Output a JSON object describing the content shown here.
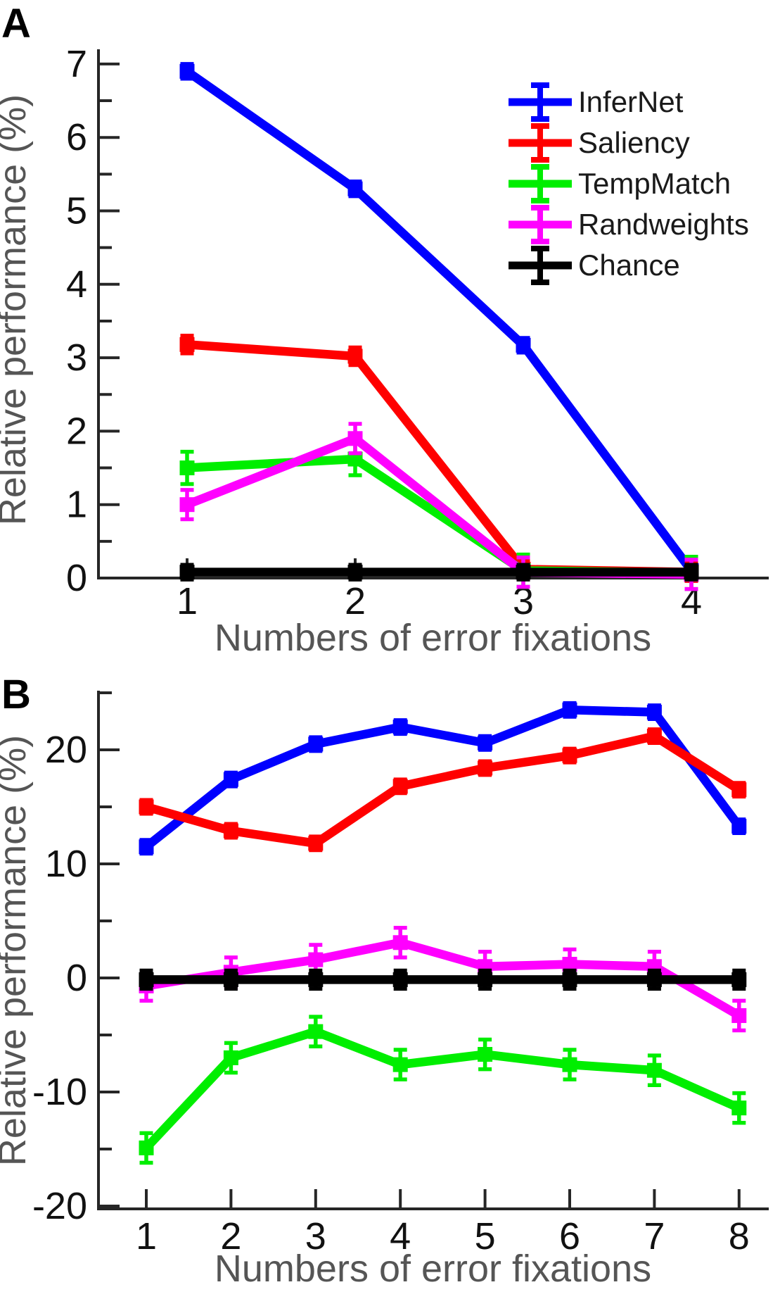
{
  "figure": {
    "panel_letters": [
      "A",
      "B"
    ],
    "colors": {
      "axis": "#262626",
      "tick_label": "#111111",
      "axis_label": "#555555",
      "infernet": "#0000ff",
      "saliency": "#ff0000",
      "tempmatch": "#00ee00",
      "randweights": "#ff00ff",
      "chance": "#000000"
    },
    "legend": {
      "position": "top-right-inside-panel-A",
      "items": [
        "InferNet",
        "Saliency",
        "TempMatch",
        "Randweights",
        "Chance"
      ]
    }
  },
  "chart_data": [
    {
      "type": "line",
      "panel": "A",
      "title": "",
      "xlabel": "Numbers of error fixations",
      "ylabel": "Relative performance (%)",
      "x": [
        1,
        2,
        3,
        4
      ],
      "xtick_labels": [
        "1",
        "2",
        "3",
        "4"
      ],
      "yticks_major": [
        0,
        1,
        2,
        3,
        4,
        5,
        6,
        7
      ],
      "ytick_labels": [
        "0",
        "1",
        "2",
        "3",
        "4",
        "5",
        "6",
        "7"
      ],
      "yticks_minor": [
        0.5,
        1.5,
        2.5,
        3.5,
        4.5,
        5.5,
        6.5
      ],
      "ylim": [
        0,
        7.2
      ],
      "grid": false,
      "legend_shown": true,
      "series": [
        {
          "name": "InferNet",
          "color": "#0000ff",
          "err": 0.1,
          "values": [
            6.9,
            5.3,
            3.17,
            0.1
          ]
        },
        {
          "name": "Saliency",
          "color": "#ff0000",
          "err": 0.12,
          "values": [
            3.18,
            3.02,
            0.12,
            0.08
          ]
        },
        {
          "name": "TempMatch",
          "color": "#00ee00",
          "err": 0.22,
          "values": [
            1.5,
            1.62,
            0.1,
            0.07
          ]
        },
        {
          "name": "Randweights",
          "color": "#ff00ff",
          "err": 0.2,
          "values": [
            1.0,
            1.9,
            0.08,
            0.05
          ]
        },
        {
          "name": "Chance",
          "color": "#000000",
          "err": 0.1,
          "values": [
            0.08,
            0.08,
            0.08,
            0.08
          ]
        }
      ]
    },
    {
      "type": "line",
      "panel": "B",
      "title": "",
      "xlabel": "Numbers of error fixations",
      "ylabel": "Relative performance (%)",
      "x": [
        1,
        2,
        3,
        4,
        5,
        6,
        7,
        8
      ],
      "xtick_labels": [
        "1",
        "2",
        "3",
        "4",
        "5",
        "6",
        "7",
        "8"
      ],
      "yticks_major": [
        -20,
        -10,
        0,
        10,
        20
      ],
      "ytick_labels": [
        "-20",
        "-10",
        "0",
        "10",
        "20"
      ],
      "yticks_minor": [
        25,
        15,
        5,
        -5,
        -15
      ],
      "ylim": [
        -20.5,
        25.2
      ],
      "grid": false,
      "legend_shown": false,
      "series": [
        {
          "name": "InferNet",
          "color": "#0000ff",
          "err": 0.6,
          "values": [
            11.5,
            17.4,
            20.5,
            22.0,
            20.6,
            23.5,
            23.3,
            13.3
          ]
        },
        {
          "name": "Saliency",
          "color": "#ff0000",
          "err": 0.6,
          "values": [
            15.0,
            12.9,
            11.8,
            16.8,
            18.4,
            19.5,
            21.2,
            16.5
          ]
        },
        {
          "name": "TempMatch",
          "color": "#00ee00",
          "err": 1.3,
          "values": [
            -14.9,
            -7.0,
            -4.7,
            -7.6,
            -6.7,
            -7.6,
            -8.1,
            -11.4
          ]
        },
        {
          "name": "Randweights",
          "color": "#ff00ff",
          "err": 1.3,
          "values": [
            -0.7,
            0.5,
            1.6,
            3.1,
            1.0,
            1.2,
            1.0,
            -3.3
          ]
        },
        {
          "name": "Chance",
          "color": "#000000",
          "err": 0.8,
          "values": [
            -0.15,
            -0.15,
            -0.15,
            -0.15,
            -0.15,
            -0.15,
            -0.15,
            -0.15
          ]
        }
      ]
    }
  ]
}
